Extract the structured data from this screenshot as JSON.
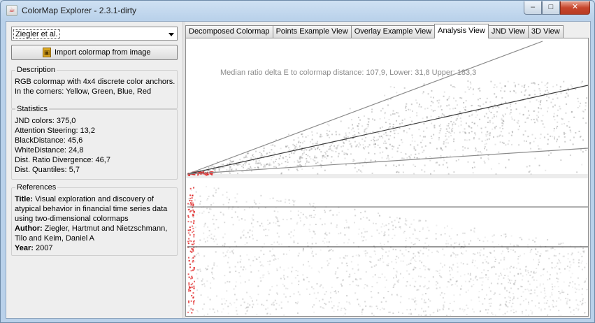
{
  "window": {
    "title": "ColorMap Explorer - 2.3.1-dirty",
    "controls": {
      "minimize": "–",
      "maximize": "□",
      "close": "✕"
    }
  },
  "left": {
    "colormap_select": {
      "value": "Ziegler et al."
    },
    "import_button": {
      "label": "Import colormap from image",
      "icon": "image-import-icon"
    },
    "description": {
      "title": "Description",
      "lines": [
        "RGB colormap with 4x4 discrete color anchors.",
        "In the corners: Yellow, Green, Blue, Red"
      ]
    },
    "statistics": {
      "title": "Statistics",
      "lines": [
        "JND colors: 375,0",
        "Attention Steering: 13,2",
        "BlackDistance: 45,6",
        "WhiteDistance: 24,8",
        "Dist. Ratio Divergence: 46,7",
        "Dist. Quantiles: 5,7"
      ]
    },
    "references": {
      "title": "References",
      "title_label": "Title:",
      "title_lines": [
        "Visual exploration and discovery of",
        "atypical behavior in financial time series data",
        "using two-dimensional colormaps"
      ],
      "author_label": "Author:",
      "author_lines": [
        "Ziegler, Hartmut and Nietzschmann,",
        "Tilo and Keim, Daniel A"
      ],
      "year_label": "Year:",
      "year": "2007"
    }
  },
  "tabs": [
    {
      "label": "Decomposed Colormap",
      "active": false
    },
    {
      "label": "Points Example View",
      "active": false
    },
    {
      "label": "Overlay Example View",
      "active": false
    },
    {
      "label": "Analysis View",
      "active": true
    },
    {
      "label": "JND View",
      "active": false
    },
    {
      "label": "3D View",
      "active": false
    }
  ],
  "analysis": {
    "median_text": "Median ratio delta E to colormap distance: 107,9, Lower: 31,8 Upper: 183,3"
  },
  "colors": {
    "window_frame": "#b9d1ea",
    "panel_bg": "#eeeeee",
    "scatter_point": "#808080",
    "outlier_point": "#e02020",
    "close_button": "#c7462d"
  }
}
